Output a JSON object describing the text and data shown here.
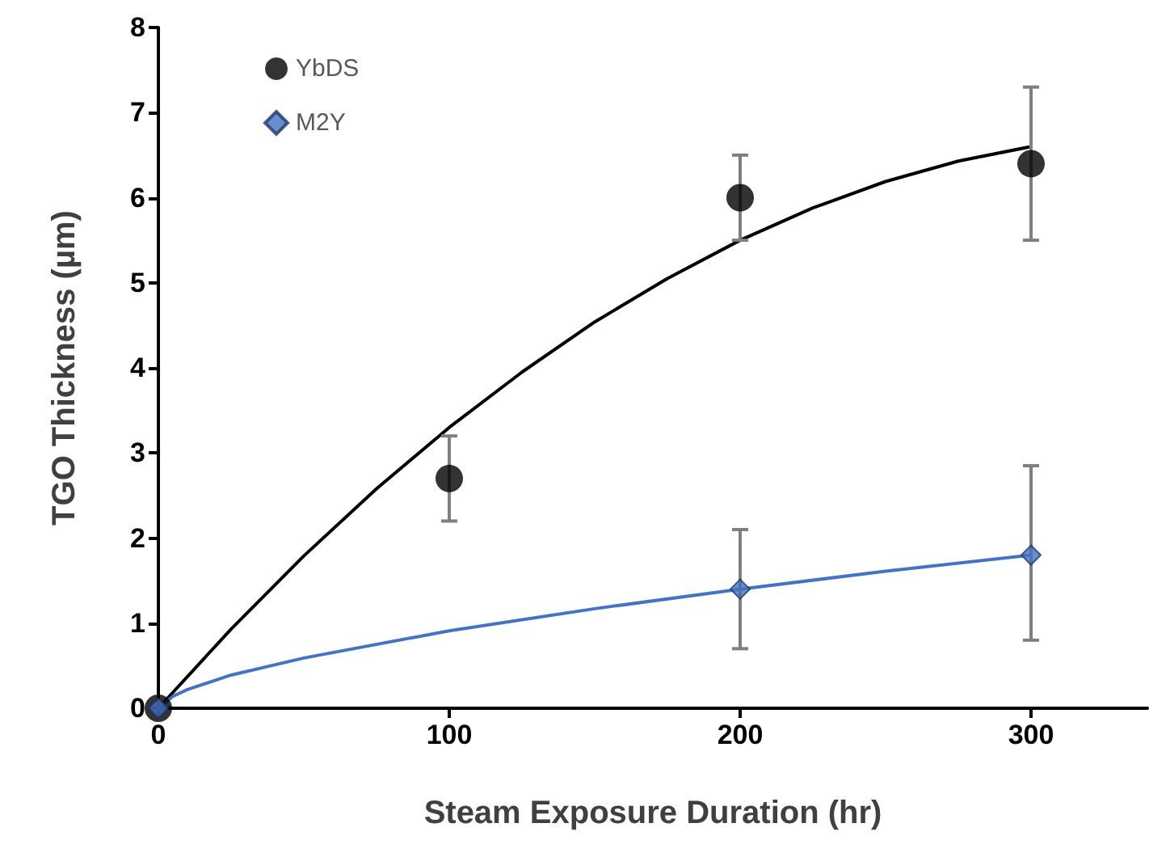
{
  "chart_data": {
    "type": "scatter",
    "xlabel": "Steam Exposure Duration (hr)",
    "ylabel": "TGO Thickness (µm)",
    "xlim": [
      0,
      340
    ],
    "xticks": [
      0,
      100,
      200,
      300
    ],
    "ylim": [
      0,
      8
    ],
    "yticks": [
      0,
      1,
      2,
      3,
      4,
      5,
      6,
      7,
      8
    ],
    "grid": false,
    "legend": "top left",
    "series": [
      {
        "name": "YbDS",
        "marker": "circle",
        "color": "#000000",
        "x": [
          0,
          100,
          200,
          300
        ],
        "values": [
          0,
          2.7,
          6.0,
          6.4
        ],
        "errors": [
          null,
          [
            2.2,
            3.2
          ],
          [
            5.5,
            6.5
          ],
          [
            5.5,
            7.3
          ]
        ]
      },
      {
        "name": "M2Y",
        "marker": "diamond",
        "color": "#4472c4",
        "x": [
          0,
          200,
          300
        ],
        "values": [
          0,
          1.4,
          1.8
        ],
        "errors": [
          null,
          [
            0.7,
            2.1
          ],
          [
            0.8,
            2.85
          ]
        ]
      },
      {
        "type": "line",
        "marker": "none",
        "color": "#000000",
        "x": [
          0,
          25,
          50,
          75,
          100,
          125,
          150,
          175,
          200,
          225,
          250,
          275,
          300
        ],
        "values": [
          0,
          0.93,
          1.79,
          2.58,
          3.3,
          3.95,
          4.54,
          5.05,
          5.5,
          5.88,
          6.19,
          6.43,
          6.6
        ]
      },
      {
        "type": "line",
        "marker": "none",
        "color": "#4472c4",
        "x": [
          0,
          5,
          10,
          25,
          50,
          100,
          150,
          200,
          250,
          300
        ],
        "values": [
          0,
          0.14,
          0.22,
          0.39,
          0.59,
          0.91,
          1.17,
          1.4,
          1.61,
          1.8
        ]
      }
    ]
  }
}
